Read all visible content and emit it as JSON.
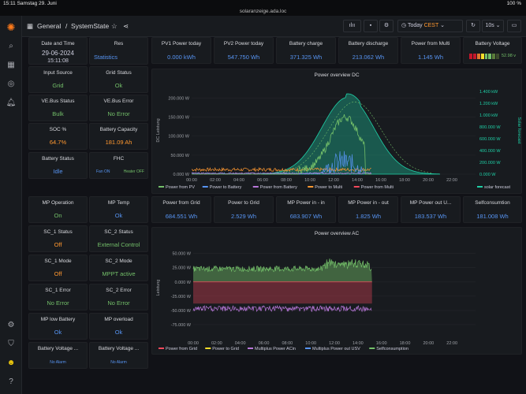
{
  "statusbar": {
    "time_date": "15:11  Samstag 29. Juni",
    "battery": "100 %",
    "url": "solaranzeige.ada.loc"
  },
  "header": {
    "folder": "General",
    "separator": "/",
    "title": "SystemState",
    "time_range": "Today",
    "timezone": "CEST",
    "refresh": "10s"
  },
  "icons": {
    "logo": "grafana-logo-icon",
    "search": "search-icon",
    "star": "star-icon",
    "share": "share-icon",
    "dashboards": "dashboards-icon",
    "explore": "compass-icon",
    "alerts": "bell-icon",
    "settings": "gear-icon",
    "shield": "shield-icon",
    "help": "help-icon",
    "add_panel": "add-panel-icon",
    "save": "save-icon",
    "cog": "gear-icon",
    "clock": "clock-icon",
    "sync": "refresh-icon",
    "tv": "tv-icon"
  },
  "left_panels": [
    {
      "title": "Date and Time",
      "value": "29-06-2024",
      "value2": "15:11:08",
      "color": "white"
    },
    {
      "title": "Res",
      "value": "Statistics",
      "color": "blue"
    },
    {
      "title": "Input Source",
      "value": "Grid",
      "color": "green"
    },
    {
      "title": "Grid Status",
      "value": "Ok",
      "color": "green"
    },
    {
      "title": "VE.Bus Status",
      "value": "Bulk",
      "color": "green"
    },
    {
      "title": "VE.Bus Error",
      "value": "No Error",
      "color": "green"
    },
    {
      "title": "SOC %",
      "value": "64.7%",
      "color": "orange"
    },
    {
      "title": "Battery Capacity",
      "value": "181.09 Ah",
      "color": "orange"
    },
    {
      "title": "Battery Status",
      "value": "Idle",
      "color": "blue"
    },
    {
      "title": "FHC",
      "value": "Fan ON",
      "value2": "Heater OFF",
      "color": "blue"
    },
    {
      "title": "MP Operation",
      "value": "On",
      "color": "green"
    },
    {
      "title": "MP Temp",
      "value": "Ok",
      "color": "blue"
    },
    {
      "title": "SC_1 Status",
      "value": "Off",
      "color": "orange"
    },
    {
      "title": "SC_2 Status",
      "value": "External Control",
      "color": "green"
    },
    {
      "title": "SC_1 Mode",
      "value": "Off",
      "color": "orange"
    },
    {
      "title": "SC_2 Mode",
      "value": "MPPT active",
      "color": "green"
    },
    {
      "title": "SC_1 Error",
      "value": "No Error",
      "color": "green"
    },
    {
      "title": "SC_2 Error",
      "value": "No Error",
      "color": "green"
    },
    {
      "title": "MP low Battery",
      "value": "Ok",
      "color": "blue"
    },
    {
      "title": "MP overload",
      "value": "Ok",
      "color": "blue"
    },
    {
      "title": "Battery Voltage ...",
      "value": "No Alarm",
      "color": "blue"
    },
    {
      "title": "Battery Voltage ...",
      "value": "No Alarm",
      "color": "blue"
    }
  ],
  "stats_top": [
    {
      "title": "PV1 Power today",
      "value": "0.000 kWh"
    },
    {
      "title": "PV2 Power today",
      "value": "547.750 Wh"
    },
    {
      "title": "Battery charge",
      "value": "371.325 Wh"
    },
    {
      "title": "Battery discharge",
      "value": "213.062 Wh"
    },
    {
      "title": "Power from Multi",
      "value": "1.145 Wh"
    },
    {
      "title": "Battery Voltage",
      "value": "52.98 v"
    }
  ],
  "stats_mid": [
    {
      "title": "Power from Grid",
      "value": "684.551 Wh"
    },
    {
      "title": "Power to Grid",
      "value": "2.529 Wh"
    },
    {
      "title": "MP Power in - in",
      "value": "683.907 Wh"
    },
    {
      "title": "MP Power in - out",
      "value": "1.825 Wh"
    },
    {
      "title": "MP Power out U...",
      "value": "183.537 Wh"
    },
    {
      "title": "Selfconsumtion",
      "value": "181.008 Wh"
    }
  ],
  "colors": {
    "green": "#73bf69",
    "orange": "#ff9830",
    "blue": "#5794f2",
    "yellow": "#fade2a",
    "teal": "#1fcfa6",
    "purple": "#b877d9",
    "red": "#f2495c"
  },
  "chart_data": [
    {
      "type": "line",
      "title": "Power overview DC",
      "ylabel": "DC Leistung",
      "y2label": "Solar forecast",
      "x": [
        "00:00",
        "02:00",
        "04:00",
        "06:00",
        "08:00",
        "10:00",
        "12:00",
        "14:00",
        "16:00",
        "18:00",
        "20:00",
        "22:00"
      ],
      "yticks": [
        "0.000 W",
        "50.000 W",
        "100.000 W",
        "150.000 W",
        "200.000 W"
      ],
      "y2ticks": [
        "0.000 W",
        "200.000 W",
        "400.000 W",
        "600.000 W",
        "800.000 W",
        "1.000 kW",
        "1.200 kW",
        "1.400 kW"
      ],
      "ylim": [
        0,
        230
      ],
      "y2lim": [
        0,
        1480
      ],
      "series": [
        {
          "name": "Power from PV",
          "color": "#73bf69"
        },
        {
          "name": "Power to Battery",
          "color": "#5794f2"
        },
        {
          "name": "Power from Battery",
          "color": "#b877d9"
        },
        {
          "name": "Power to Multi",
          "color": "#ff9830"
        },
        {
          "name": "Power from Multi",
          "color": "#f2495c"
        },
        {
          "name": "solar forecast",
          "color": "#1fcfa6"
        }
      ]
    },
    {
      "type": "line",
      "title": "Power overview AC",
      "ylabel": "Leistung",
      "x": [
        "00:00",
        "02:00",
        "04:00",
        "06:00",
        "08:00",
        "10:00",
        "12:00",
        "14:00",
        "16:00",
        "18:00",
        "20:00",
        "22:00"
      ],
      "yticks": [
        "-75.000 W",
        "-50.000 W",
        "-25.000 W",
        "0.000 W",
        "25.000 W",
        "50.000 W"
      ],
      "ylim": [
        -82,
        62
      ],
      "series": [
        {
          "name": "Power from Grid",
          "color": "#f2495c"
        },
        {
          "name": "Power to Grid",
          "color": "#fade2a"
        },
        {
          "name": "Multiplus Power ACin",
          "color": "#b877d9"
        },
        {
          "name": "Multiplus Power out USV",
          "color": "#5794f2"
        },
        {
          "name": "Selfconsumption",
          "color": "#73bf69"
        }
      ]
    }
  ]
}
